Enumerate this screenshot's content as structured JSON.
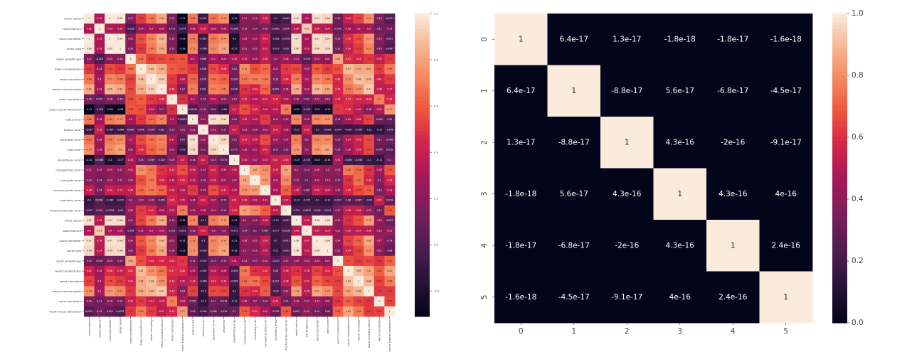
{
  "chart_data": [
    {
      "type": "heatmap",
      "title": "",
      "annotated": true,
      "labels": [
        "mean radius",
        "mean texture",
        "mean perimeter",
        "mean area",
        "mean smoothness",
        "mean compactness",
        "mean concavity",
        "mean concave points",
        "mean symmetry",
        "mean fractal dimension",
        "radius error",
        "texture error",
        "perimeter error",
        "area error",
        "smoothness error",
        "compactness error",
        "concavity error",
        "concave points error",
        "symmetry error",
        "fractal dimension error",
        "worst radius",
        "worst texture",
        "worst perimeter",
        "worst area",
        "worst smoothness",
        "worst compactness",
        "worst concavity",
        "worst concave points",
        "worst symmetry",
        "worst fractal dimension"
      ],
      "values": [
        [
          1,
          0.32,
          1,
          0.99,
          0.17,
          0.51,
          0.68,
          0.82,
          0.15,
          -0.31,
          0.68,
          -0.097,
          0.67,
          0.74,
          -0.22,
          0.21,
          0.19,
          0.38,
          -0.1,
          -0.043,
          0.97,
          0.3,
          0.97,
          0.94,
          0.12,
          0.41,
          0.53,
          0.74,
          0.16,
          0.0071
        ],
        [
          0.32,
          1,
          0.33,
          0.32,
          -0.023,
          0.24,
          0.3,
          0.29,
          0.071,
          -0.076,
          0.28,
          0.39,
          0.28,
          0.26,
          0.0066,
          0.19,
          0.14,
          0.16,
          0.0091,
          0.054,
          0.35,
          0.91,
          0.36,
          0.34,
          0.078,
          0.28,
          0.3,
          0.3,
          0.11,
          0.12
        ],
        [
          1,
          0.33,
          1,
          0.99,
          0.21,
          0.56,
          0.72,
          0.85,
          0.18,
          -0.26,
          0.69,
          -0.087,
          0.69,
          0.74,
          -0.2,
          0.25,
          0.23,
          0.41,
          -0.082,
          -0.0055,
          0.97,
          0.3,
          0.97,
          0.94,
          0.15,
          0.46,
          0.56,
          0.77,
          0.19,
          0.051
        ],
        [
          0.99,
          0.32,
          0.99,
          1,
          0.18,
          0.5,
          0.69,
          0.82,
          0.15,
          -0.28,
          0.73,
          -0.066,
          0.73,
          0.8,
          -0.17,
          0.21,
          0.21,
          0.37,
          -0.072,
          -0.02,
          0.96,
          0.29,
          0.96,
          0.96,
          0.12,
          0.39,
          0.51,
          0.72,
          0.14,
          0.0037
        ],
        [
          0.17,
          -0.023,
          0.21,
          0.18,
          1,
          0.66,
          0.52,
          0.55,
          0.56,
          0.58,
          0.3,
          0.068,
          0.3,
          0.25,
          0.33,
          0.32,
          0.25,
          0.38,
          0.2,
          0.28,
          0.21,
          0.036,
          0.24,
          0.21,
          0.81,
          0.47,
          0.43,
          0.5,
          0.39,
          0.5
        ],
        [
          0.51,
          0.24,
          0.56,
          0.5,
          0.66,
          1,
          0.88,
          0.83,
          0.6,
          0.57,
          0.5,
          0.046,
          0.55,
          0.46,
          0.14,
          0.74,
          0.57,
          0.64,
          0.23,
          0.51,
          0.54,
          0.25,
          0.59,
          0.51,
          0.57,
          0.87,
          0.82,
          0.82,
          0.51,
          0.69
        ],
        [
          0.68,
          0.3,
          0.72,
          0.69,
          0.52,
          0.88,
          1,
          0.92,
          0.5,
          0.34,
          0.63,
          0.076,
          0.66,
          0.62,
          0.099,
          0.67,
          0.69,
          0.68,
          0.18,
          0.45,
          0.69,
          0.3,
          0.73,
          0.68,
          0.45,
          0.75,
          0.88,
          0.86,
          0.41,
          0.51
        ],
        [
          0.82,
          0.29,
          0.85,
          0.82,
          0.55,
          0.83,
          0.92,
          1,
          0.46,
          0.17,
          0.7,
          0.021,
          0.71,
          0.69,
          0.028,
          0.49,
          0.44,
          0.62,
          0.095,
          0.26,
          0.83,
          0.29,
          0.86,
          0.81,
          0.45,
          0.67,
          0.75,
          0.91,
          0.38,
          0.37
        ],
        [
          0.15,
          0.071,
          0.18,
          0.15,
          0.56,
          0.6,
          0.5,
          0.46,
          1,
          0.48,
          0.3,
          0.13,
          0.31,
          0.22,
          0.19,
          0.42,
          0.34,
          0.39,
          0.45,
          0.33,
          0.19,
          0.091,
          0.22,
          0.18,
          0.43,
          0.47,
          0.43,
          0.43,
          0.7,
          0.44
        ],
        [
          -0.31,
          -0.076,
          -0.26,
          -0.28,
          0.58,
          0.57,
          0.34,
          0.17,
          0.48,
          1,
          0.00011,
          0.16,
          0.04,
          -0.09,
          0.4,
          0.56,
          0.45,
          0.34,
          0.35,
          0.69,
          -0.25,
          -0.051,
          -0.21,
          -0.23,
          0.5,
          0.46,
          0.35,
          0.18,
          0.33,
          0.77
        ],
        [
          0.68,
          0.28,
          0.69,
          0.73,
          0.3,
          0.5,
          0.63,
          0.7,
          0.3,
          0.00011,
          1,
          0.21,
          0.97,
          0.95,
          0.16,
          0.36,
          0.33,
          0.51,
          0.24,
          0.23,
          0.72,
          0.19,
          0.72,
          0.75,
          0.14,
          0.29,
          0.38,
          0.53,
          0.095,
          0.05
        ],
        [
          -0.097,
          0.39,
          -0.087,
          -0.066,
          0.068,
          0.046,
          0.076,
          0.021,
          0.13,
          0.16,
          0.21,
          1,
          0.22,
          0.11,
          0.4,
          0.23,
          0.19,
          0.23,
          0.41,
          0.28,
          -0.11,
          0.41,
          -0.1,
          -0.083,
          -0.074,
          -0.092,
          -0.069,
          -0.12,
          -0.13,
          -0.046
        ],
        [
          0.67,
          0.28,
          0.69,
          0.73,
          0.3,
          0.55,
          0.66,
          0.71,
          0.31,
          0.04,
          0.97,
          0.22,
          1,
          0.94,
          0.15,
          0.42,
          0.36,
          0.56,
          0.27,
          0.24,
          0.7,
          0.2,
          0.72,
          0.73,
          0.13,
          0.34,
          0.42,
          0.55,
          0.11,
          0.086
        ],
        [
          0.74,
          0.26,
          0.74,
          0.8,
          0.25,
          0.46,
          0.62,
          0.69,
          0.22,
          -0.09,
          0.95,
          0.11,
          0.94,
          1,
          0.075,
          0.28,
          0.27,
          0.42,
          0.13,
          0.13,
          0.76,
          0.2,
          0.76,
          0.81,
          0.13,
          0.28,
          0.39,
          0.54,
          0.074,
          0.018
        ],
        [
          -0.22,
          0.0066,
          -0.2,
          -0.17,
          0.33,
          0.14,
          0.099,
          0.028,
          0.19,
          0.4,
          0.16,
          0.4,
          0.15,
          0.075,
          1,
          0.34,
          0.27,
          0.33,
          0.41,
          0.43,
          -0.23,
          -0.075,
          -0.22,
          -0.18,
          0.31,
          -0.056,
          -0.058,
          -0.1,
          -0.11,
          0.1
        ],
        [
          0.21,
          0.19,
          0.25,
          0.21,
          0.32,
          0.74,
          0.67,
          0.49,
          0.42,
          0.56,
          0.36,
          0.23,
          0.42,
          0.28,
          0.34,
          1,
          0.8,
          0.74,
          0.39,
          0.8,
          0.2,
          0.14,
          0.26,
          0.2,
          0.23,
          0.68,
          0.64,
          0.48,
          0.28,
          0.59
        ],
        [
          0.19,
          0.14,
          0.23,
          0.21,
          0.25,
          0.57,
          0.69,
          0.44,
          0.34,
          0.45,
          0.33,
          0.19,
          0.36,
          0.27,
          0.27,
          0.8,
          1,
          0.77,
          0.31,
          0.73,
          0.19,
          0.1,
          0.23,
          0.19,
          0.17,
          0.48,
          0.66,
          0.44,
          0.2,
          0.44
        ],
        [
          0.38,
          0.16,
          0.41,
          0.37,
          0.38,
          0.64,
          0.68,
          0.62,
          0.39,
          0.34,
          0.51,
          0.23,
          0.56,
          0.42,
          0.33,
          0.74,
          0.77,
          1,
          0.31,
          0.61,
          0.36,
          0.087,
          0.39,
          0.34,
          0.22,
          0.45,
          0.55,
          0.6,
          0.14,
          0.31
        ],
        [
          -0.1,
          0.0091,
          -0.082,
          -0.072,
          0.2,
          0.23,
          0.18,
          0.095,
          0.45,
          0.35,
          0.24,
          0.41,
          0.27,
          0.13,
          0.41,
          0.39,
          0.31,
          0.31,
          1,
          0.37,
          -0.13,
          -0.077,
          -0.1,
          -0.11,
          -0.013,
          0.06,
          0.037,
          -0.03,
          0.39,
          0.078
        ],
        [
          -0.043,
          0.054,
          -0.0055,
          -0.02,
          0.28,
          0.51,
          0.45,
          0.26,
          0.33,
          0.69,
          0.23,
          0.28,
          0.24,
          0.13,
          0.43,
          0.8,
          0.73,
          0.61,
          0.37,
          1,
          -0.037,
          -0.0032,
          -0.001,
          -0.023,
          0.17,
          0.39,
          0.38,
          0.22,
          0.11,
          0.59
        ],
        [
          0.97,
          0.35,
          0.97,
          0.96,
          0.21,
          0.54,
          0.69,
          0.83,
          0.19,
          -0.25,
          0.72,
          -0.11,
          0.7,
          0.76,
          -0.23,
          0.2,
          0.19,
          0.36,
          -0.13,
          -0.037,
          1,
          0.36,
          0.99,
          0.98,
          0.22,
          0.48,
          0.57,
          0.79,
          0.24,
          0.093
        ],
        [
          0.3,
          0.91,
          0.3,
          0.29,
          0.036,
          0.25,
          0.3,
          0.29,
          0.091,
          -0.051,
          0.19,
          0.41,
          0.2,
          0.2,
          -0.075,
          0.14,
          0.1,
          0.087,
          -0.077,
          -0.0032,
          0.36,
          1,
          0.37,
          0.35,
          0.23,
          0.36,
          0.37,
          0.36,
          0.23,
          0.22
        ],
        [
          0.97,
          0.36,
          0.97,
          0.96,
          0.24,
          0.59,
          0.73,
          0.86,
          0.22,
          -0.21,
          0.72,
          -0.1,
          0.72,
          0.76,
          -0.22,
          0.26,
          0.23,
          0.39,
          -0.1,
          -0.001,
          0.99,
          0.37,
          1,
          0.98,
          0.24,
          0.53,
          0.62,
          0.82,
          0.27,
          0.14
        ],
        [
          0.94,
          0.34,
          0.94,
          0.96,
          0.21,
          0.51,
          0.68,
          0.81,
          0.18,
          -0.23,
          0.75,
          -0.083,
          0.73,
          0.81,
          -0.18,
          0.2,
          0.19,
          0.34,
          -0.11,
          -0.023,
          0.98,
          0.35,
          0.98,
          1,
          0.21,
          0.44,
          0.54,
          0.75,
          0.21,
          0.08
        ],
        [
          0.12,
          0.078,
          0.15,
          0.12,
          0.81,
          0.57,
          0.45,
          0.45,
          0.43,
          0.5,
          0.14,
          -0.074,
          0.13,
          0.13,
          0.31,
          0.23,
          0.17,
          0.22,
          -0.013,
          0.17,
          0.22,
          0.23,
          0.24,
          0.21,
          1,
          0.57,
          0.52,
          0.55,
          0.49,
          0.62
        ],
        [
          0.41,
          0.28,
          0.46,
          0.39,
          0.47,
          0.87,
          0.75,
          0.67,
          0.47,
          0.46,
          0.29,
          -0.092,
          0.34,
          0.28,
          -0.056,
          0.68,
          0.48,
          0.45,
          0.06,
          0.39,
          0.48,
          0.36,
          0.53,
          0.44,
          0.57,
          1,
          0.89,
          0.8,
          0.61,
          0.81
        ],
        [
          0.53,
          0.3,
          0.56,
          0.51,
          0.43,
          0.82,
          0.88,
          0.75,
          0.43,
          0.35,
          0.38,
          -0.069,
          0.42,
          0.39,
          -0.058,
          0.64,
          0.66,
          0.55,
          0.037,
          0.38,
          0.57,
          0.37,
          0.62,
          0.54,
          0.52,
          0.89,
          1,
          0.86,
          0.53,
          0.69
        ],
        [
          0.74,
          0.3,
          0.77,
          0.72,
          0.5,
          0.82,
          0.86,
          0.91,
          0.43,
          0.18,
          0.53,
          -0.12,
          0.55,
          0.54,
          -0.1,
          0.48,
          0.44,
          0.6,
          -0.03,
          0.22,
          0.79,
          0.36,
          0.82,
          0.75,
          0.55,
          0.8,
          0.86,
          1,
          0.5,
          0.51
        ],
        [
          0.16,
          0.11,
          0.19,
          0.14,
          0.39,
          0.51,
          0.41,
          0.38,
          0.7,
          0.33,
          0.095,
          -0.13,
          0.11,
          0.074,
          -0.11,
          0.28,
          0.2,
          0.14,
          0.39,
          0.11,
          0.24,
          0.23,
          0.27,
          0.21,
          0.49,
          0.61,
          0.53,
          0.5,
          1,
          0.54
        ],
        [
          0.0071,
          0.12,
          0.051,
          0.0037,
          0.5,
          0.69,
          0.51,
          0.37,
          0.44,
          0.77,
          0.05,
          -0.046,
          0.086,
          0.018,
          0.1,
          0.59,
          0.44,
          0.31,
          0.078,
          0.59,
          0.093,
          0.22,
          0.14,
          0.08,
          0.62,
          0.81,
          0.69,
          0.51,
          0.54,
          1
        ]
      ],
      "colorbar": {
        "min": -0.31,
        "max": 1.0,
        "ticks": [
          "1.0",
          "0.8",
          "0.6",
          "0.4",
          "0.2",
          "0.0",
          "-0.2"
        ]
      },
      "colormap": "rocket"
    },
    {
      "type": "heatmap",
      "title": "",
      "annotated": true,
      "labels": [
        "0",
        "1",
        "2",
        "3",
        "4",
        "5"
      ],
      "values": [
        [
          1,
          6.4e-17,
          1.3e-17,
          -1.8e-18,
          -1.8e-17,
          -1.6e-18
        ],
        [
          6.4e-17,
          1,
          -8.8e-17,
          5.6e-17,
          -6.8e-17,
          -4.5e-17
        ],
        [
          1.3e-17,
          -8.8e-17,
          1,
          4.3e-16,
          -2e-16,
          -9.1e-17
        ],
        [
          -1.8e-18,
          5.6e-17,
          4.3e-16,
          1,
          4.3e-16,
          4e-16
        ],
        [
          -1.8e-17,
          -6.8e-17,
          -2e-16,
          4.3e-16,
          1,
          2.4e-16
        ],
        [
          -1.6e-18,
          -4.5e-17,
          -9.1e-17,
          4e-16,
          2.4e-16,
          1
        ]
      ],
      "cell_labels": [
        [
          "1",
          "6.4e-17",
          "1.3e-17",
          "-1.8e-18",
          "-1.8e-17",
          "-1.6e-18"
        ],
        [
          "6.4e-17",
          "1",
          "-8.8e-17",
          "5.6e-17",
          "-6.8e-17",
          "-4.5e-17"
        ],
        [
          "1.3e-17",
          "-8.8e-17",
          "1",
          "4.3e-16",
          "-2e-16",
          "-9.1e-17"
        ],
        [
          "-1.8e-18",
          "5.6e-17",
          "4.3e-16",
          "1",
          "4.3e-16",
          "4e-16"
        ],
        [
          "-1.8e-17",
          "-6.8e-17",
          "-2e-16",
          "4.3e-16",
          "1",
          "2.4e-16"
        ],
        [
          "-1.6e-18",
          "-4.5e-17",
          "-9.1e-17",
          "4e-16",
          "2.4e-16",
          "1"
        ]
      ],
      "colorbar": {
        "min": 0.0,
        "max": 1.0,
        "ticks": [
          "1.0",
          "0.8",
          "0.6",
          "0.4",
          "0.2",
          "0.0"
        ]
      },
      "colormap": "rocket"
    }
  ]
}
